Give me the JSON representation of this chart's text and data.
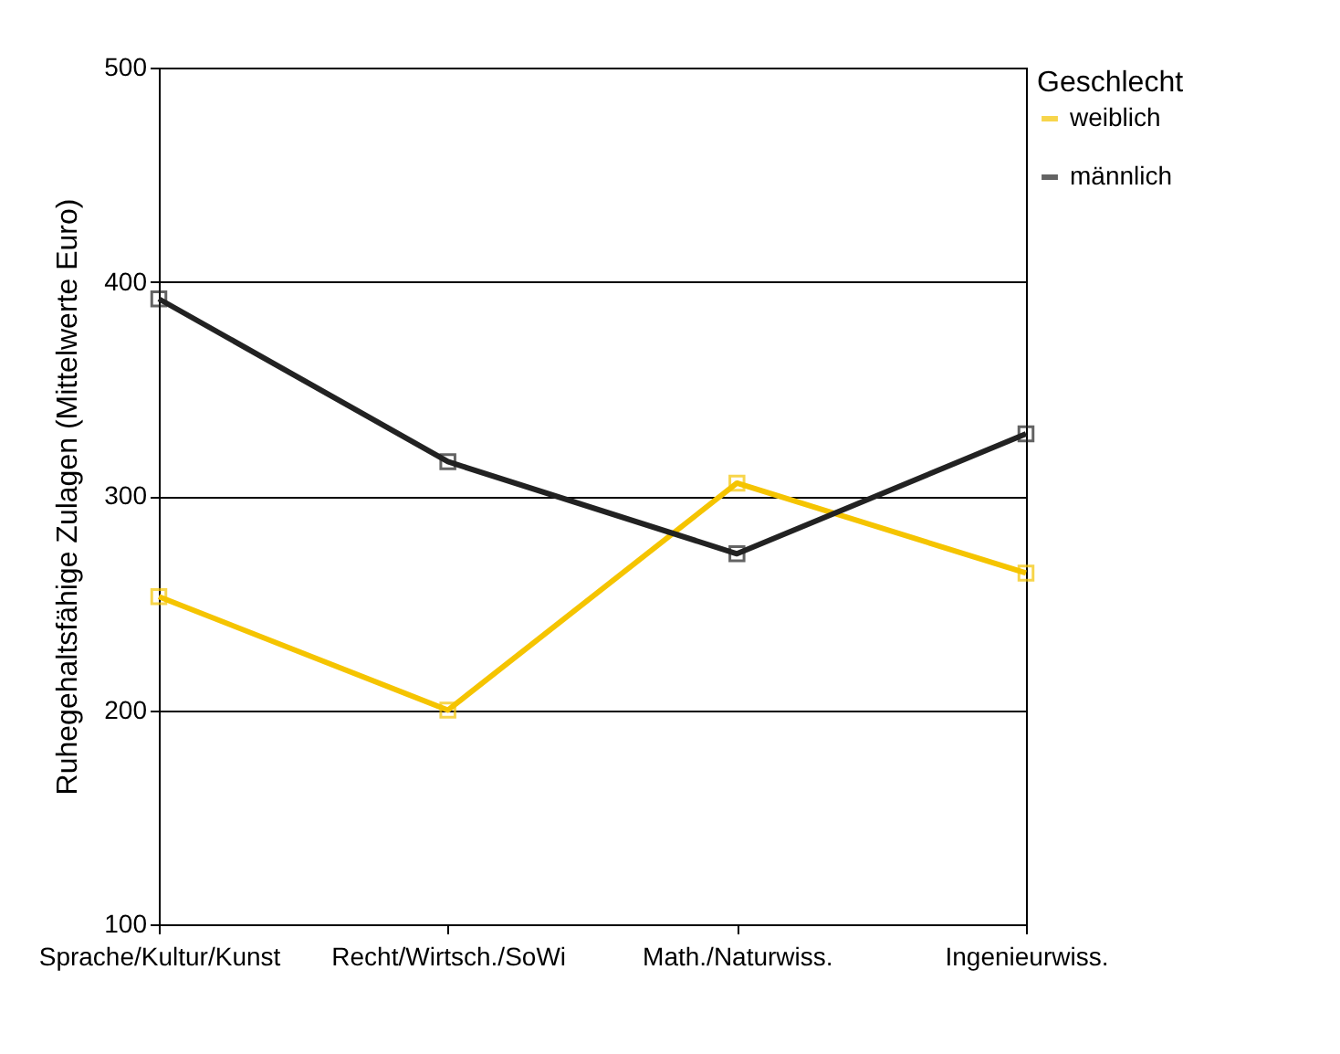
{
  "chart_data": {
    "type": "line",
    "ylabel": "Ruhegehaltsfähige Zulagen (Mittelwerte Euro)",
    "legend_title": "Geschlecht",
    "categories": [
      "Sprache/Kultur/Kunst",
      "Recht/Wirtsch./SoWi",
      "Math./Naturwiss.",
      "Ingenieurwiss."
    ],
    "series": [
      {
        "name": "weiblich",
        "color": "#f5c400",
        "values": [
          253,
          200,
          306,
          264
        ]
      },
      {
        "name": "männlich",
        "color": "#222222",
        "values": [
          392,
          316,
          273,
          329
        ]
      }
    ],
    "ylim": [
      100,
      500
    ],
    "yticks": [
      100,
      200,
      300,
      400,
      500
    ],
    "grid": "y",
    "legend": "right",
    "marker": "square",
    "line_style": "solid"
  }
}
